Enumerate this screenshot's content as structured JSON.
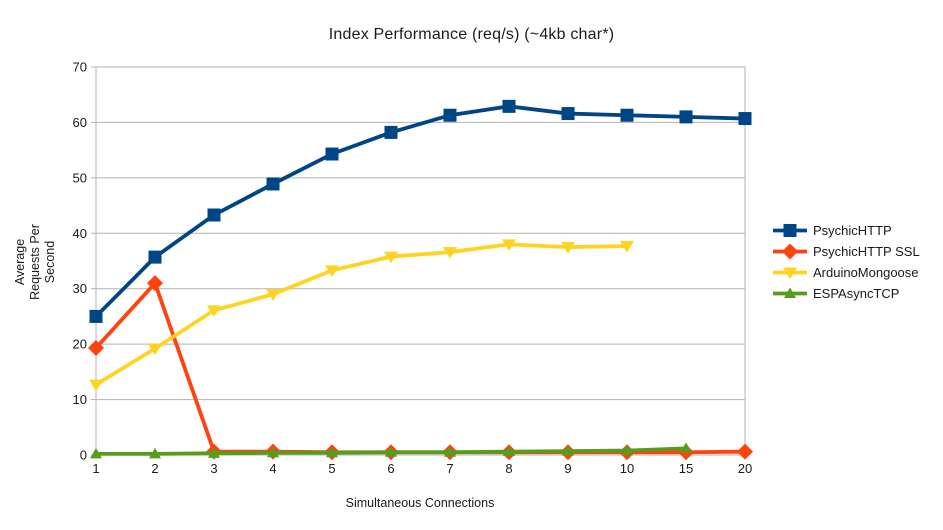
{
  "chart_data": {
    "type": "line",
    "title": "Index Performance (req/s) (~4kb char*)",
    "xlabel": "Simultaneous Connections",
    "ylabel": "Average\nRequests Per Second",
    "x_categories": [
      "1",
      "2",
      "3",
      "4",
      "5",
      "6",
      "7",
      "8",
      "9",
      "10",
      "15",
      "20"
    ],
    "y_ticks": [
      0,
      10,
      20,
      30,
      40,
      50,
      60,
      70
    ],
    "ylim": [
      0,
      70
    ],
    "grid": "horizontal",
    "legend_position": "right",
    "grid_color": "#b3b3b3",
    "axis_color": "#b3b3b3",
    "text_color": "#1a1a1a",
    "series": [
      {
        "name": "PsychicHTTP",
        "color": "#004586",
        "marker": "square",
        "values": [
          25.0,
          35.7,
          43.3,
          48.9,
          54.3,
          58.2,
          61.3,
          62.9,
          61.6,
          61.3,
          61.0,
          60.7
        ]
      },
      {
        "name": "PsychicHTTP SSL",
        "color": "#ff420e",
        "marker": "diamond",
        "values": [
          19.3,
          31.0,
          0.6,
          0.6,
          0.5,
          0.5,
          0.5,
          0.5,
          0.5,
          0.5,
          0.5,
          0.6
        ]
      },
      {
        "name": "ArduinoMongoose",
        "color": "#ffd320",
        "marker": "triangle-down",
        "values": [
          12.7,
          19.2,
          26.1,
          29.0,
          33.3,
          35.8,
          36.6,
          38.0,
          37.5,
          37.7,
          null,
          null
        ]
      },
      {
        "name": "ESPAsyncTCP",
        "color": "#579d1c",
        "marker": "triangle-up",
        "values": [
          0.2,
          0.2,
          0.3,
          0.4,
          0.4,
          0.5,
          0.5,
          0.6,
          0.7,
          0.8,
          1.2,
          null
        ]
      }
    ]
  }
}
